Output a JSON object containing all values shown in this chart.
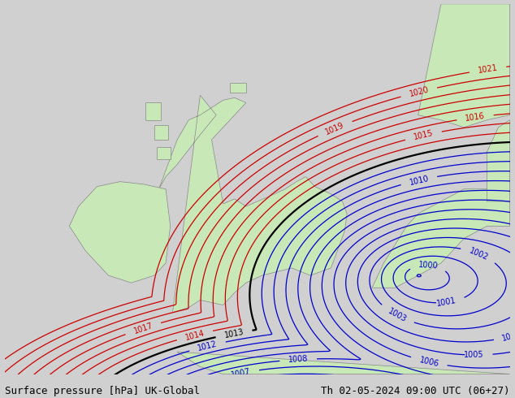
{
  "title_left": "Surface pressure [hPa] UK-Global",
  "title_right": "Th 02-05-2024 09:00 UTC (06+27)",
  "bg_color": "#d0d0d0",
  "land_color": "#c8e8b8",
  "sea_color": "#d0d0d0",
  "blue_color": "#0000cc",
  "red_color": "#cc0000",
  "black_color": "#000000",
  "coast_color": "#888888",
  "title_fontsize": 9,
  "label_fontsize": 7,
  "figsize": [
    6.34,
    4.9
  ],
  "dpi": 100,
  "lon_min": -13.0,
  "lon_max": 9.0,
  "lat_min": 47.5,
  "lat_max": 62.5
}
